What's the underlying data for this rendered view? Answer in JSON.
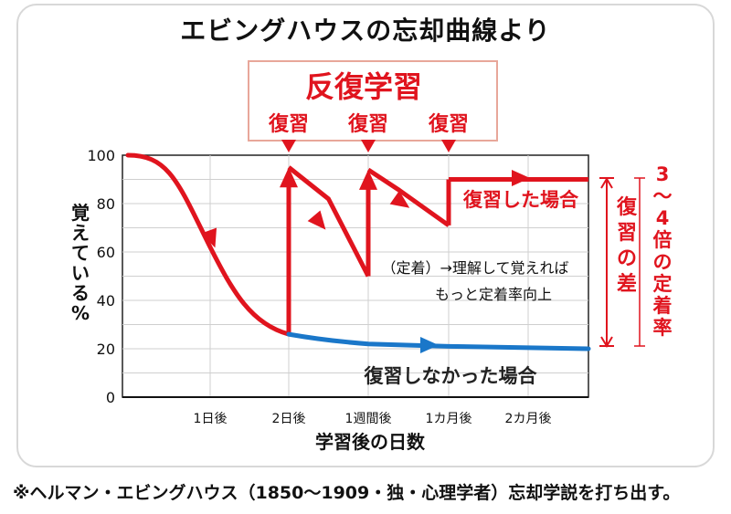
{
  "page": {
    "title": "エビングハウスの忘却曲線より",
    "footnote": "※ヘルマン・エビングハウス（1850〜1909・独・心理学者）忘却学説を打ち出す。"
  },
  "annotations": {
    "repeat_box_title": "反復学習",
    "review_label": "復習",
    "reviewed_case": "復習した場合",
    "not_reviewed_case": "復習しなかった場合",
    "note_line1": "（定着）→理解して覚えれば",
    "note_line2": "もっと定着率向上",
    "diff_label": "復習の差",
    "fold_label": "3〜4倍の定着率"
  },
  "chart_data": {
    "type": "line",
    "title": "エビングハウスの忘却曲線より",
    "xlabel": "学習後の日数",
    "ylabel": "覚えている%",
    "ylim": [
      0,
      100
    ],
    "yticks": [
      0,
      20,
      40,
      60,
      80,
      100
    ],
    "xticks": [
      "1日後",
      "2日後",
      "1週間後",
      "1カ月後",
      "2カ月後"
    ],
    "grid": true,
    "series": [
      {
        "name": "復習した場合",
        "color": "#e0141e",
        "points": [
          {
            "x": "0",
            "y": 100
          },
          {
            "x": "1日後",
            "y": 62
          },
          {
            "x": "2日後",
            "y": 26
          },
          {
            "x": "2日後",
            "y": 95
          },
          {
            "x": "1週間後",
            "y": 50
          },
          {
            "x": "1週間後",
            "y": 94
          },
          {
            "x": "1カ月後",
            "y": 71
          },
          {
            "x": "1カ月後",
            "y": 90
          },
          {
            "x": "2カ月後",
            "y": 90
          }
        ]
      },
      {
        "name": "復習しなかった場合",
        "color": "#1a77c9",
        "points": [
          {
            "x": "2日後",
            "y": 26
          },
          {
            "x": "1週間後",
            "y": 22
          },
          {
            "x": "1カ月後",
            "y": 21
          },
          {
            "x": "2カ月後",
            "y": 20
          }
        ]
      }
    ],
    "review_points": [
      "2日後",
      "1週間後",
      "1カ月後"
    ]
  }
}
